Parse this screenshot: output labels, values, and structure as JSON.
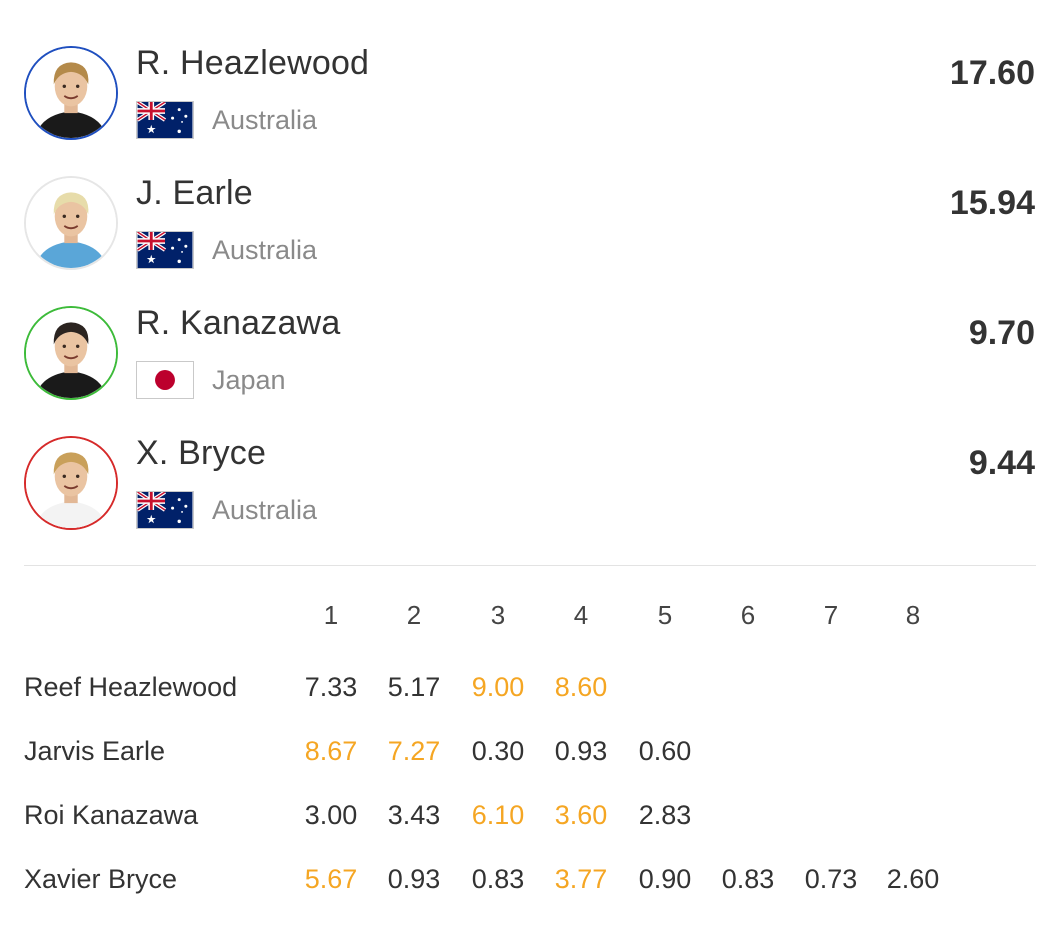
{
  "accent_color": "#f5a623",
  "athletes": [
    {
      "short_name": "R. Heazlewood",
      "country": "Australia",
      "flag": "australia-flag-icon",
      "total": "17.60",
      "ring_color": "#1f4fbf",
      "jersey_color": "#1a1a1a",
      "hair_color": "#b48a4a"
    },
    {
      "short_name": "J. Earle",
      "country": "Australia",
      "flag": "australia-flag-icon",
      "total": "15.94",
      "ring_color": "#e6e6e6",
      "jersey_color": "#5aa6d8",
      "hair_color": "#e7dcaa"
    },
    {
      "short_name": "R. Kanazawa",
      "country": "Japan",
      "flag": "japan-flag-icon",
      "total": "9.70",
      "ring_color": "#3dbb3a",
      "jersey_color": "#1a1a1a",
      "hair_color": "#2b2420"
    },
    {
      "short_name": "X. Bryce",
      "country": "Australia",
      "flag": "australia-flag-icon",
      "total": "9.44",
      "ring_color": "#d62a2a",
      "jersey_color": "#f3f3f3",
      "hair_color": "#c9a05a"
    }
  ],
  "waves": {
    "headers": [
      "1",
      "2",
      "3",
      "4",
      "5",
      "6",
      "7",
      "8"
    ],
    "rows": [
      {
        "name": "Reef Heazlewood",
        "scores": [
          {
            "value": "7.33",
            "counted": false
          },
          {
            "value": "5.17",
            "counted": false
          },
          {
            "value": "9.00",
            "counted": true
          },
          {
            "value": "8.60",
            "counted": true
          }
        ]
      },
      {
        "name": "Jarvis Earle",
        "scores": [
          {
            "value": "8.67",
            "counted": true
          },
          {
            "value": "7.27",
            "counted": true
          },
          {
            "value": "0.30",
            "counted": false
          },
          {
            "value": "0.93",
            "counted": false
          },
          {
            "value": "0.60",
            "counted": false
          }
        ]
      },
      {
        "name": "Roi Kanazawa",
        "scores": [
          {
            "value": "3.00",
            "counted": false
          },
          {
            "value": "3.43",
            "counted": false
          },
          {
            "value": "6.10",
            "counted": true
          },
          {
            "value": "3.60",
            "counted": true
          },
          {
            "value": "2.83",
            "counted": false
          }
        ]
      },
      {
        "name": "Xavier Bryce",
        "scores": [
          {
            "value": "5.67",
            "counted": true
          },
          {
            "value": "0.93",
            "counted": false
          },
          {
            "value": "0.83",
            "counted": false
          },
          {
            "value": "3.77",
            "counted": true
          },
          {
            "value": "0.90",
            "counted": false
          },
          {
            "value": "0.83",
            "counted": false
          },
          {
            "value": "0.73",
            "counted": false
          },
          {
            "value": "2.60",
            "counted": false
          }
        ]
      }
    ]
  }
}
